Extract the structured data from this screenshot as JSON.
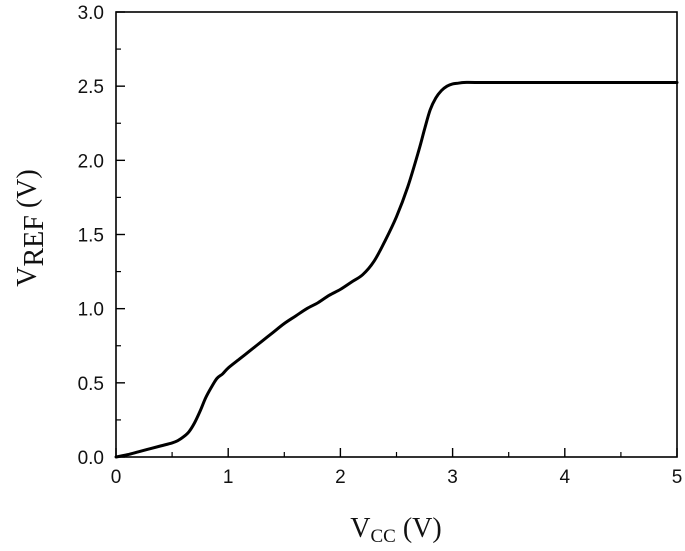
{
  "chart_data": {
    "type": "line",
    "xlabel": {
      "main": "V",
      "sub": "CC",
      "unit": " (V)"
    },
    "ylabel": {
      "main": "V",
      "sub": "REF",
      "unit": " (V)"
    },
    "xlim": [
      0,
      5
    ],
    "ylim": [
      0,
      3
    ],
    "xticks": [
      0,
      1,
      2,
      3,
      4,
      5
    ],
    "xtick_labels": [
      "0",
      "1",
      "2",
      "3",
      "4",
      "5"
    ],
    "yticks": [
      0,
      0.5,
      1.0,
      1.5,
      2.0,
      2.5,
      3.0
    ],
    "ytick_labels": [
      "0.0",
      "0.5",
      "1.0",
      "1.5",
      "2.0",
      "2.5",
      "3.0"
    ],
    "x_minor_step": 0.5,
    "y_minor_step": 0.25,
    "grid": false,
    "series": [
      {
        "color": "#000000",
        "x": [
          0.0,
          0.1,
          0.2,
          0.3,
          0.4,
          0.5,
          0.55,
          0.6,
          0.65,
          0.7,
          0.75,
          0.8,
          0.85,
          0.9,
          0.95,
          1.0,
          1.1,
          1.2,
          1.3,
          1.4,
          1.5,
          1.6,
          1.7,
          1.8,
          1.9,
          2.0,
          2.1,
          2.2,
          2.3,
          2.4,
          2.5,
          2.6,
          2.7,
          2.75,
          2.8,
          2.85,
          2.9,
          2.95,
          3.0,
          3.05,
          3.1,
          3.2,
          3.5,
          4.0,
          4.5,
          5.0
        ],
        "y": [
          0.0,
          0.015,
          0.035,
          0.055,
          0.075,
          0.095,
          0.11,
          0.135,
          0.17,
          0.23,
          0.31,
          0.4,
          0.47,
          0.53,
          0.56,
          0.6,
          0.66,
          0.72,
          0.78,
          0.84,
          0.9,
          0.95,
          1.0,
          1.04,
          1.09,
          1.13,
          1.18,
          1.23,
          1.32,
          1.46,
          1.62,
          1.82,
          2.07,
          2.21,
          2.34,
          2.42,
          2.47,
          2.5,
          2.515,
          2.52,
          2.525,
          2.525,
          2.525,
          2.525,
          2.525,
          2.525
        ]
      }
    ]
  }
}
